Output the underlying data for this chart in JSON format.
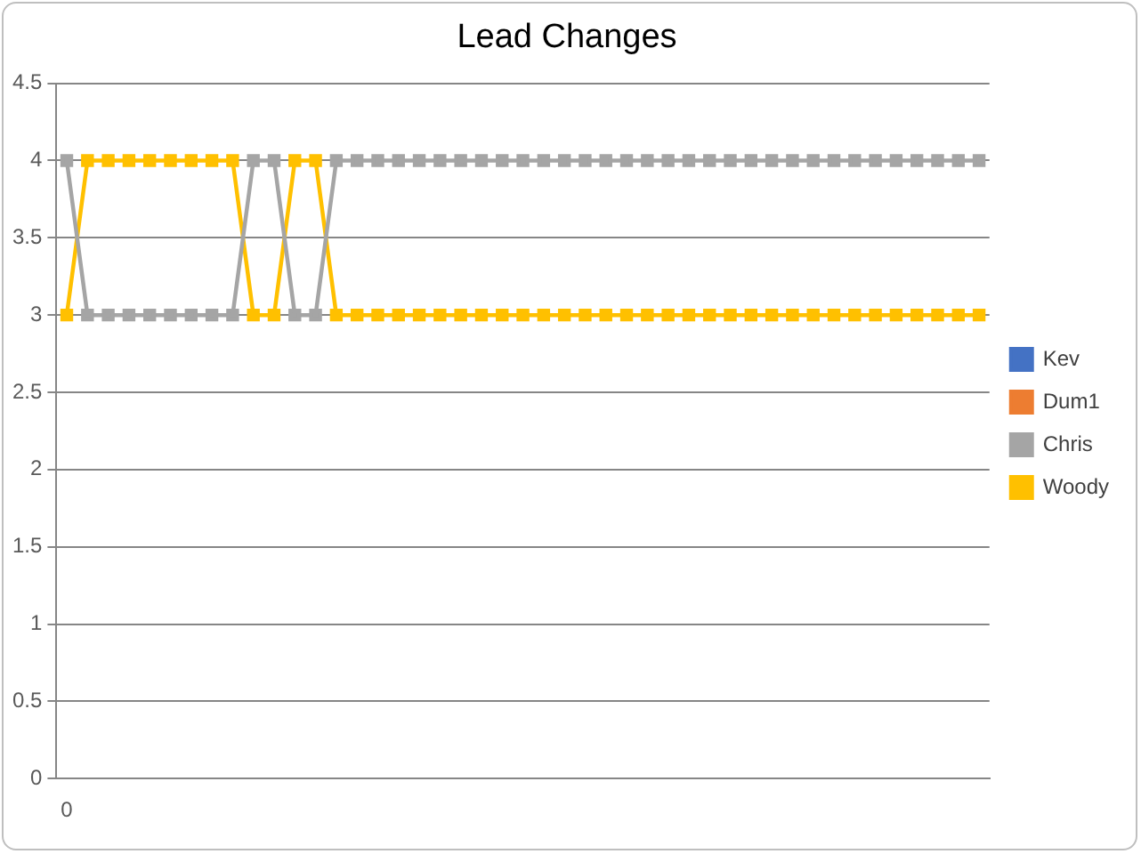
{
  "chart_data": {
    "type": "line",
    "title": "Lead Changes",
    "categories": [
      "0",
      null,
      null,
      null,
      null,
      null,
      null,
      null,
      null,
      null,
      null,
      null,
      null,
      null,
      null,
      null,
      null,
      null,
      null,
      null,
      null,
      null,
      null,
      null,
      null,
      null,
      null,
      null,
      null,
      null,
      null,
      null,
      null,
      null,
      null,
      null,
      null,
      null,
      null,
      null,
      null,
      null,
      null,
      null,
      null
    ],
    "series": [
      {
        "name": "Kev",
        "color": "#4472c4",
        "values": [
          null,
          null,
          null,
          null,
          null,
          null,
          null,
          null,
          null,
          null,
          null,
          null,
          null,
          null,
          null,
          null,
          null,
          null,
          null,
          null,
          null,
          null,
          null,
          null,
          null,
          null,
          null,
          null,
          null,
          null,
          null,
          null,
          null,
          null,
          null,
          null,
          null,
          null,
          null,
          null,
          null,
          null,
          null,
          null,
          null
        ]
      },
      {
        "name": "Dum1",
        "color": "#ed7d31",
        "values": [
          null,
          null,
          null,
          null,
          null,
          null,
          null,
          null,
          null,
          null,
          null,
          null,
          null,
          null,
          null,
          null,
          null,
          null,
          null,
          null,
          null,
          null,
          null,
          null,
          null,
          null,
          null,
          null,
          null,
          null,
          null,
          null,
          null,
          null,
          null,
          null,
          null,
          null,
          null,
          null,
          null,
          null,
          null,
          null,
          null
        ]
      },
      {
        "name": "Chris",
        "color": "#a5a5a5",
        "values": [
          4,
          3,
          3,
          3,
          3,
          3,
          3,
          3,
          3,
          4,
          4,
          3,
          3,
          4,
          4,
          4,
          4,
          4,
          4,
          4,
          4,
          4,
          4,
          4,
          4,
          4,
          4,
          4,
          4,
          4,
          4,
          4,
          4,
          4,
          4,
          4,
          4,
          4,
          4,
          4,
          4,
          4,
          4,
          4,
          4
        ]
      },
      {
        "name": "Woody",
        "color": "#ffc000",
        "values": [
          3,
          4,
          4,
          4,
          4,
          4,
          4,
          4,
          4,
          3,
          3,
          4,
          4,
          3,
          3,
          3,
          3,
          3,
          3,
          3,
          3,
          3,
          3,
          3,
          3,
          3,
          3,
          3,
          3,
          3,
          3,
          3,
          3,
          3,
          3,
          3,
          3,
          3,
          3,
          3,
          3,
          3,
          3,
          3,
          3
        ]
      }
    ],
    "ylim": [
      0,
      4.5
    ],
    "yticks": [
      0,
      0.5,
      1,
      1.5,
      2,
      2.5,
      3,
      3.5,
      4,
      4.5
    ],
    "grid": "y",
    "legend": "right",
    "marker": "square",
    "line_style": "solid"
  }
}
